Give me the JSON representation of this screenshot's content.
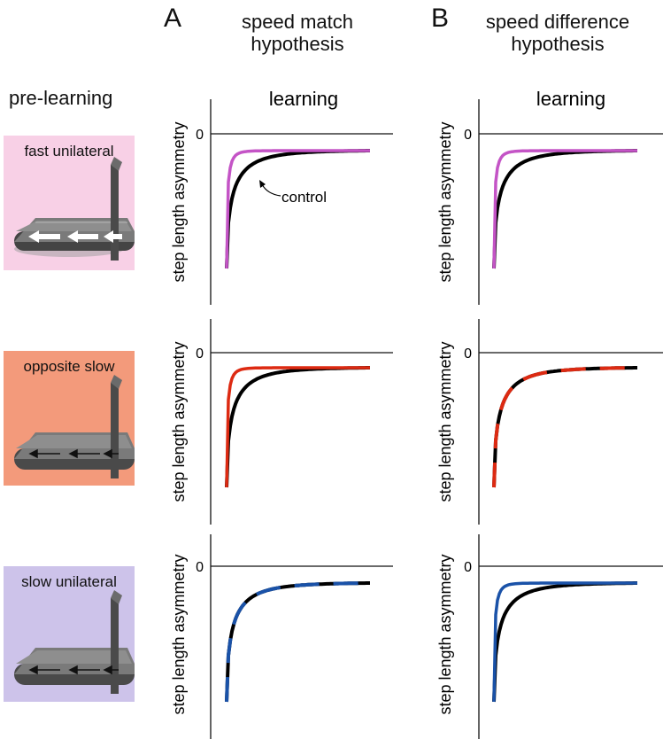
{
  "columns": [
    {
      "letter": "A",
      "title_line1": "speed match",
      "title_line2": "hypothesis"
    },
    {
      "letter": "B",
      "title_line1": "speed difference",
      "title_line2": "hypothesis"
    }
  ],
  "row_header": "pre-learning",
  "panel_header": "learning",
  "ylabel": "step length asymmetry",
  "zero_tick": "0",
  "annotation": "control",
  "conditions": [
    {
      "label": "fast unilateral",
      "bg": "#f8d0e6",
      "color": "#c454c6",
      "arrow_style": "thick-white"
    },
    {
      "label": "opposite slow",
      "bg": "#f39a7b",
      "color": "#dd2a12",
      "arrow_style": "thin-black"
    },
    {
      "label": "slow unilateral",
      "bg": "#cdc3ea",
      "color": "#1a52a8",
      "arrow_style": "thin-black"
    }
  ],
  "chart_data": [
    {
      "type": "line",
      "panel": "A-fast unilateral",
      "ylabel": "step length asymmetry",
      "series": [
        {
          "name": "control",
          "color": "#000000",
          "style": "solid",
          "rate": "slow"
        },
        {
          "color": "#c454c6",
          "style": "solid",
          "rate": "fast"
        }
      ]
    },
    {
      "type": "line",
      "panel": "B-fast unilateral",
      "ylabel": "step length asymmetry",
      "series": [
        {
          "name": "control",
          "color": "#000000",
          "style": "solid",
          "rate": "slow"
        },
        {
          "color": "#c454c6",
          "style": "solid",
          "rate": "fast"
        }
      ]
    },
    {
      "type": "line",
      "panel": "A-opposite slow",
      "ylabel": "step length asymmetry",
      "series": [
        {
          "name": "control",
          "color": "#000000",
          "style": "solid",
          "rate": "slow"
        },
        {
          "color": "#dd2a12",
          "style": "solid",
          "rate": "fast"
        }
      ]
    },
    {
      "type": "line",
      "panel": "B-opposite slow",
      "ylabel": "step length asymmetry",
      "series": [
        {
          "name": "control",
          "color": "#000000",
          "style": "dashed-overlay",
          "rate": "slow"
        },
        {
          "color": "#dd2a12",
          "style": "dashed-overlay",
          "rate": "slow"
        }
      ]
    },
    {
      "type": "line",
      "panel": "A-slow unilateral",
      "ylabel": "step length asymmetry",
      "series": [
        {
          "name": "control",
          "color": "#000000",
          "style": "dashed-overlay",
          "rate": "slow"
        },
        {
          "color": "#1a52a8",
          "style": "dashed-overlay",
          "rate": "slow"
        }
      ]
    },
    {
      "type": "line",
      "panel": "B-slow unilateral",
      "ylabel": "step length asymmetry",
      "series": [
        {
          "name": "control",
          "color": "#000000",
          "style": "solid",
          "rate": "slow"
        },
        {
          "color": "#1a52a8",
          "style": "solid",
          "rate": "fast"
        }
      ]
    }
  ]
}
